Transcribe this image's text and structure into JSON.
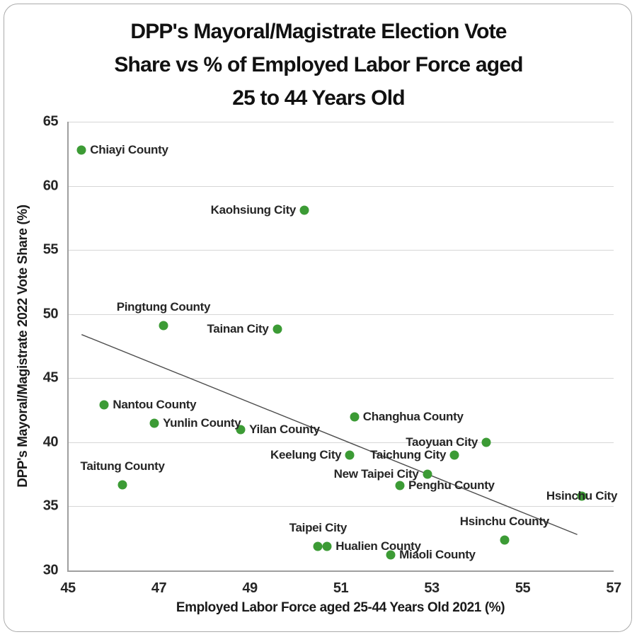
{
  "title_lines": [
    "DPP's Mayoral/Magistrate Election Vote",
    "Share vs % of Employed Labor Force aged",
    "25 to 44 Years Old"
  ],
  "chart_data": {
    "type": "scatter",
    "title": "DPP's Mayoral/Magistrate Election Vote Share vs % of Employed Labor Force aged 25 to 44 Years Old",
    "xlabel": "Employed Labor Force aged 25-44 Years Old 2021 (%)",
    "ylabel": "DPP's Mayoral/Magistrate 2022 Vote Share (%)",
    "xlim": [
      45,
      57
    ],
    "ylim": [
      30,
      65
    ],
    "x_ticks": [
      45,
      47,
      49,
      51,
      53,
      55,
      57
    ],
    "y_ticks": [
      65,
      60,
      55,
      50,
      45,
      40,
      35,
      30
    ],
    "grid": "horizontal-only",
    "legend": "none",
    "marker_color": "#3c9b35",
    "trendline": {
      "x1": 45.3,
      "y1": 48.4,
      "x2": 56.2,
      "y2": 32.8,
      "color": "#4d4d4d"
    },
    "points": [
      {
        "label": "Chiayi County",
        "x": 45.3,
        "y": 62.8,
        "label_anchor": "right"
      },
      {
        "label": "Kaohsiung City",
        "x": 50.2,
        "y": 58.1,
        "label_anchor": "left"
      },
      {
        "label": "Pingtung County",
        "x": 47.1,
        "y": 49.1,
        "label_anchor": "above"
      },
      {
        "label": "Tainan City",
        "x": 49.6,
        "y": 48.8,
        "label_anchor": "left"
      },
      {
        "label": "Nantou County",
        "x": 45.8,
        "y": 42.9,
        "label_anchor": "right"
      },
      {
        "label": "Yunlin County",
        "x": 46.9,
        "y": 41.5,
        "label_anchor": "right"
      },
      {
        "label": "Yilan County",
        "x": 48.8,
        "y": 41.0,
        "label_anchor": "right"
      },
      {
        "label": "Changhua County",
        "x": 51.3,
        "y": 42.0,
        "label_anchor": "right"
      },
      {
        "label": "Taoyuan City",
        "x": 54.2,
        "y": 40.0,
        "label_anchor": "left"
      },
      {
        "label": "Keelung City",
        "x": 51.2,
        "y": 39.0,
        "label_anchor": "left"
      },
      {
        "label": "Taichung City",
        "x": 53.5,
        "y": 39.0,
        "label_anchor": "left"
      },
      {
        "label": "New Taipei City",
        "x": 52.9,
        "y": 37.5,
        "label_anchor": "left"
      },
      {
        "label": "Penghu County",
        "x": 52.3,
        "y": 36.6,
        "label_anchor": "right"
      },
      {
        "label": "Taitung County",
        "x": 46.2,
        "y": 36.7,
        "label_anchor": "above"
      },
      {
        "label": "Hsinchu City",
        "x": 56.3,
        "y": 35.8,
        "label_anchor": "center"
      },
      {
        "label": "Hsinchu County",
        "x": 54.6,
        "y": 32.4,
        "label_anchor": "above"
      },
      {
        "label": "Taipei City",
        "x": 50.5,
        "y": 31.9,
        "label_anchor": "above"
      },
      {
        "label": "Hualien County",
        "x": 50.7,
        "y": 31.9,
        "label_anchor": "right"
      },
      {
        "label": "Miaoli County",
        "x": 52.1,
        "y": 31.2,
        "label_anchor": "right"
      }
    ]
  }
}
